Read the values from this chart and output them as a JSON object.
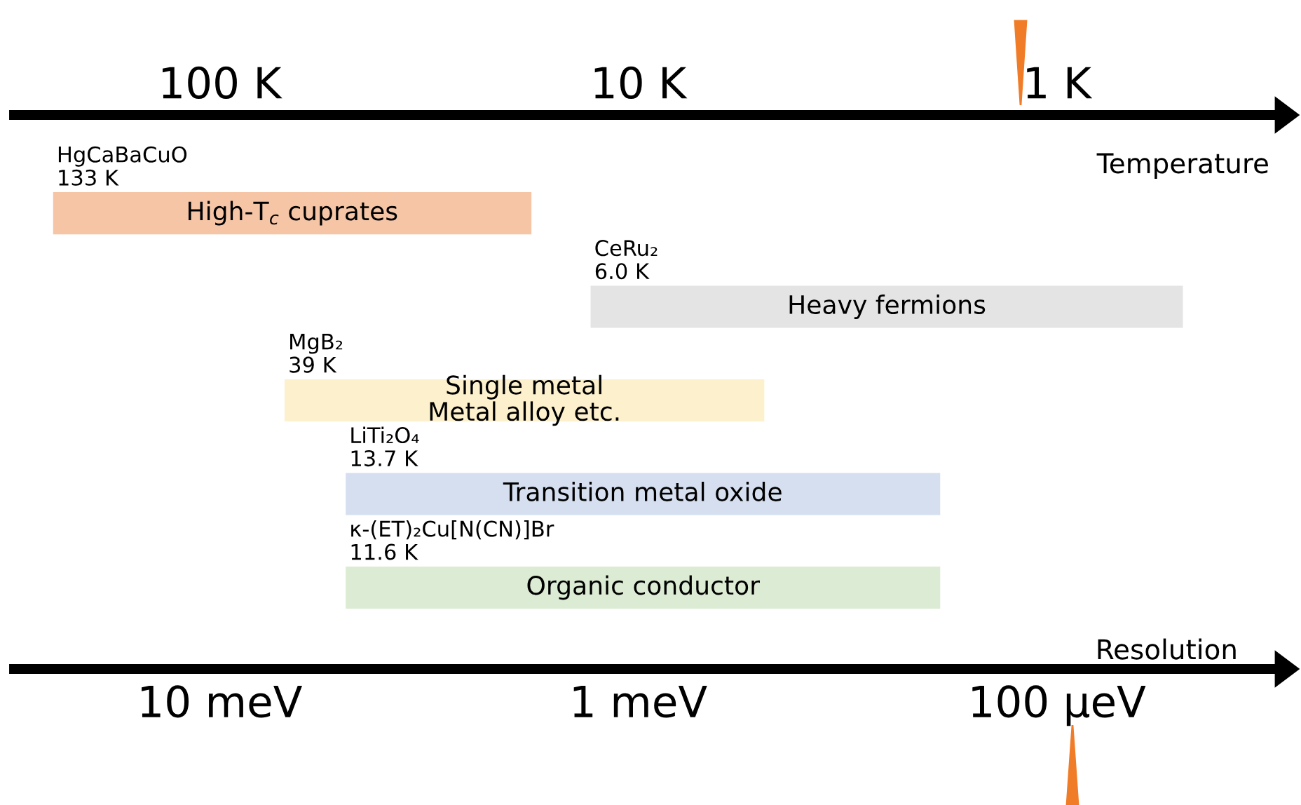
{
  "chart_data": {
    "type": "bar",
    "orientation": "horizontal",
    "xlabel": "Temperature",
    "x2label": "Resolution",
    "categories": [
      "High-T$_{c}$ cuprates",
      "Heavy fermions",
      "Single metal\nMetal alloy etc.",
      "Transition metal oxide",
      "Organic conductor"
    ],
    "values": [
      232,
      12.5,
      65,
      48.1,
      48.1
    ],
    "base": [
      18,
      0.5,
      5,
      1.9,
      1.9
    ],
    "colors": [
      "#f5c5a6",
      "#e4e4e4",
      "#fdf0cc",
      "#d5dff0",
      "#dcebd3"
    ],
    "log": "x",
    "xlim": [
      310,
      0.3
    ],
    "xticks": [
      {
        "value": 100,
        "label": "100 K"
      },
      {
        "value": 10,
        "label": "10 K"
      },
      {
        "value": 1,
        "label": "1 K"
      }
    ],
    "tick_labels": "x",
    "grid": false,
    "annotations": [
      "HgCaBaCuO\n133 K",
      "CeRu₂\n6.0 K",
      "MgB₂\n39 K",
      "LiTi₂O₄\n13.7 K",
      "κ-(ET)₂Cu[N(CN)]Br\n11.6 K",
      "10 meV",
      "1 meV",
      "100 μeV"
    ]
  }
}
